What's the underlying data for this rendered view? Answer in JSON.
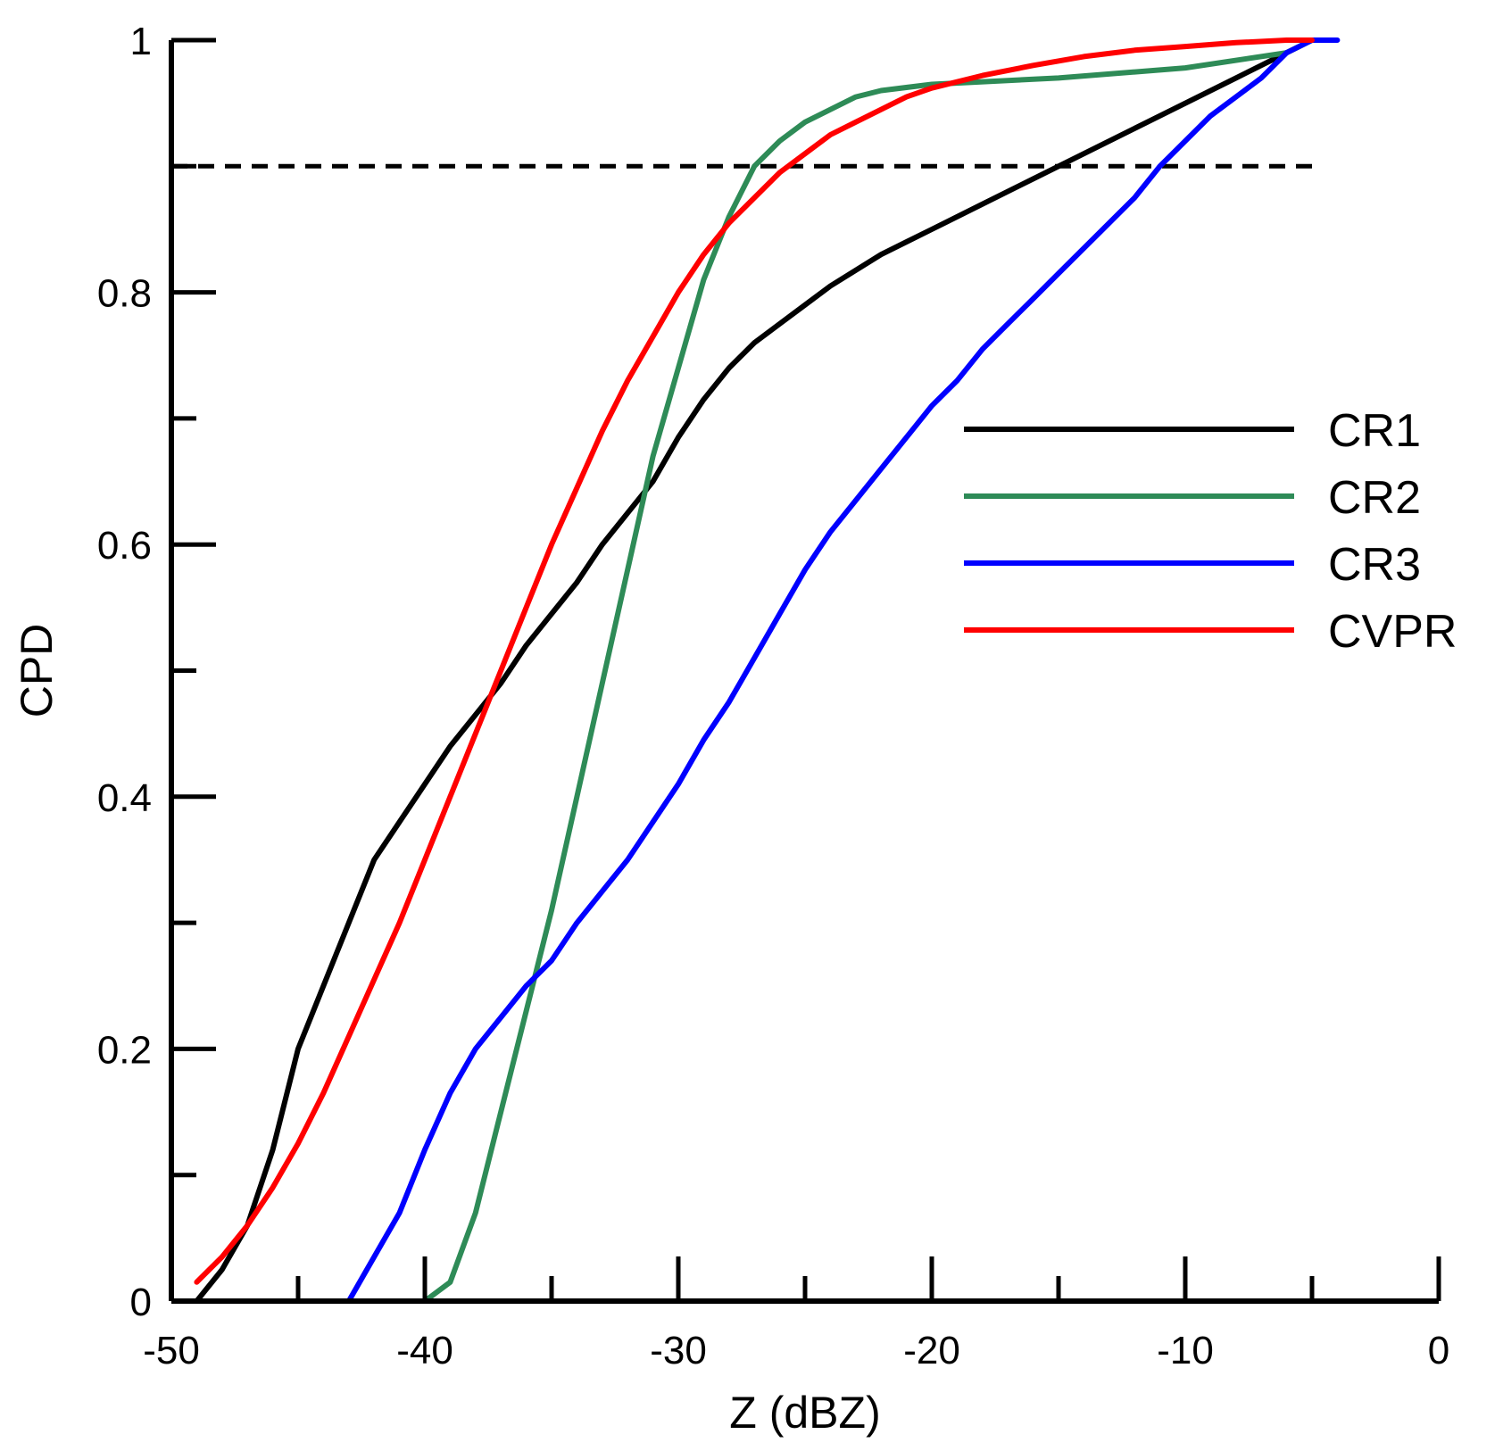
{
  "chart_data": {
    "type": "line",
    "xlabel": "Z (dBZ)",
    "ylabel": "CPD",
    "xlim": [
      -50,
      0
    ],
    "ylim": [
      0,
      1
    ],
    "x_ticks": [
      -50,
      -40,
      -30,
      -20,
      -10,
      0
    ],
    "x_tick_labels": [
      "-50",
      "-40",
      "-30",
      "-20",
      "-10",
      "0"
    ],
    "y_ticks": [
      0,
      0.2,
      0.4,
      0.6,
      0.8,
      1
    ],
    "y_tick_labels": [
      "0",
      "0.2",
      "0.4",
      "0.6",
      "0.8",
      "1"
    ],
    "grid": false,
    "legend_position": "right",
    "reference_line": {
      "y": 0.9,
      "style": "dashed",
      "color": "#000000"
    },
    "series": [
      {
        "name": "CR1",
        "color": "#000000",
        "points": [
          [
            -49,
            0
          ],
          [
            -48,
            0.025
          ],
          [
            -47,
            0.06
          ],
          [
            -46,
            0.12
          ],
          [
            -45,
            0.2
          ],
          [
            -44,
            0.25
          ],
          [
            -43,
            0.3
          ],
          [
            -42,
            0.35
          ],
          [
            -41,
            0.38
          ],
          [
            -40,
            0.41
          ],
          [
            -39,
            0.44
          ],
          [
            -38,
            0.465
          ],
          [
            -37,
            0.49
          ],
          [
            -36,
            0.52
          ],
          [
            -35,
            0.545
          ],
          [
            -34,
            0.57
          ],
          [
            -33,
            0.6
          ],
          [
            -32,
            0.625
          ],
          [
            -31,
            0.65
          ],
          [
            -30,
            0.685
          ],
          [
            -29,
            0.715
          ],
          [
            -28,
            0.74
          ],
          [
            -27,
            0.76
          ],
          [
            -26,
            0.775
          ],
          [
            -25,
            0.79
          ],
          [
            -24,
            0.805
          ],
          [
            -22,
            0.83
          ],
          [
            -20,
            0.85
          ],
          [
            -18,
            0.87
          ],
          [
            -16,
            0.89
          ],
          [
            -14,
            0.91
          ],
          [
            -12,
            0.93
          ],
          [
            -10,
            0.95
          ],
          [
            -8,
            0.97
          ],
          [
            -6,
            0.99
          ],
          [
            -5,
            1.0
          ]
        ]
      },
      {
        "name": "CR2",
        "color": "#2e8b57",
        "points": [
          [
            -40,
            0
          ],
          [
            -39,
            0.015
          ],
          [
            -38,
            0.07
          ],
          [
            -37,
            0.15
          ],
          [
            -36,
            0.23
          ],
          [
            -35,
            0.31
          ],
          [
            -34,
            0.4
          ],
          [
            -33,
            0.49
          ],
          [
            -32,
            0.58
          ],
          [
            -31,
            0.67
          ],
          [
            -30,
            0.74
          ],
          [
            -29,
            0.81
          ],
          [
            -28,
            0.86
          ],
          [
            -27,
            0.9
          ],
          [
            -26,
            0.92
          ],
          [
            -25,
            0.935
          ],
          [
            -24,
            0.945
          ],
          [
            -23,
            0.955
          ],
          [
            -22,
            0.96
          ],
          [
            -20,
            0.965
          ],
          [
            -15,
            0.97
          ],
          [
            -10,
            0.978
          ],
          [
            -6,
            0.99
          ],
          [
            -5,
            1.0
          ]
        ]
      },
      {
        "name": "CR3",
        "color": "#0000ff",
        "points": [
          [
            -43,
            0
          ],
          [
            -42,
            0.035
          ],
          [
            -41,
            0.07
          ],
          [
            -40,
            0.12
          ],
          [
            -39,
            0.165
          ],
          [
            -38,
            0.2
          ],
          [
            -37,
            0.225
          ],
          [
            -36,
            0.25
          ],
          [
            -35,
            0.27
          ],
          [
            -34,
            0.3
          ],
          [
            -33,
            0.325
          ],
          [
            -32,
            0.35
          ],
          [
            -31,
            0.38
          ],
          [
            -30,
            0.41
          ],
          [
            -29,
            0.445
          ],
          [
            -28,
            0.475
          ],
          [
            -27,
            0.51
          ],
          [
            -26,
            0.545
          ],
          [
            -25,
            0.58
          ],
          [
            -24,
            0.61
          ],
          [
            -23,
            0.635
          ],
          [
            -22,
            0.66
          ],
          [
            -21,
            0.685
          ],
          [
            -20,
            0.71
          ],
          [
            -19,
            0.73
          ],
          [
            -18,
            0.755
          ],
          [
            -17,
            0.775
          ],
          [
            -16,
            0.795
          ],
          [
            -15,
            0.815
          ],
          [
            -14,
            0.835
          ],
          [
            -13,
            0.855
          ],
          [
            -12,
            0.875
          ],
          [
            -11,
            0.9
          ],
          [
            -10,
            0.92
          ],
          [
            -9,
            0.94
          ],
          [
            -8,
            0.955
          ],
          [
            -7,
            0.97
          ],
          [
            -6,
            0.99
          ],
          [
            -5,
            1.0
          ],
          [
            -4,
            1.0
          ]
        ]
      },
      {
        "name": "CVPR",
        "color": "#ff0000",
        "points": [
          [
            -49,
            0.015
          ],
          [
            -48,
            0.035
          ],
          [
            -47,
            0.06
          ],
          [
            -46,
            0.09
          ],
          [
            -45,
            0.125
          ],
          [
            -44,
            0.165
          ],
          [
            -43,
            0.21
          ],
          [
            -42,
            0.255
          ],
          [
            -41,
            0.3
          ],
          [
            -40,
            0.35
          ],
          [
            -39,
            0.4
          ],
          [
            -38,
            0.45
          ],
          [
            -37,
            0.5
          ],
          [
            -36,
            0.55
          ],
          [
            -35,
            0.6
          ],
          [
            -34,
            0.645
          ],
          [
            -33,
            0.69
          ],
          [
            -32,
            0.73
          ],
          [
            -31,
            0.765
          ],
          [
            -30,
            0.8
          ],
          [
            -29,
            0.83
          ],
          [
            -28,
            0.855
          ],
          [
            -27,
            0.875
          ],
          [
            -26,
            0.895
          ],
          [
            -25,
            0.91
          ],
          [
            -24,
            0.925
          ],
          [
            -23,
            0.935
          ],
          [
            -22,
            0.945
          ],
          [
            -21,
            0.955
          ],
          [
            -20,
            0.962
          ],
          [
            -18,
            0.972
          ],
          [
            -16,
            0.98
          ],
          [
            -14,
            0.987
          ],
          [
            -12,
            0.992
          ],
          [
            -10,
            0.995
          ],
          [
            -8,
            0.998
          ],
          [
            -6,
            1.0
          ],
          [
            -5,
            1.0
          ]
        ]
      }
    ]
  }
}
